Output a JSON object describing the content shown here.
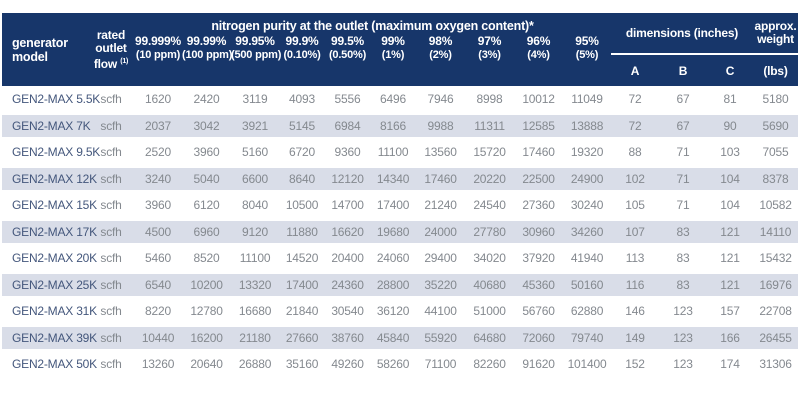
{
  "table": {
    "header": {
      "model_label": "generator model",
      "flow_label": "rated outlet flow",
      "flow_footnote": "(1)",
      "purity_title": "nitrogen purity at the outlet (maximum oxygen content)*",
      "purity_columns": [
        {
          "purity": "99.999%",
          "oxygen": "(10 ppm)"
        },
        {
          "purity": "99.99%",
          "oxygen": "(100 ppm)"
        },
        {
          "purity": "99.95%",
          "oxygen": "(500 ppm)"
        },
        {
          "purity": "99.9%",
          "oxygen": "(0.10%)"
        },
        {
          "purity": "99.5%",
          "oxygen": "(0.50%)"
        },
        {
          "purity": "99%",
          "oxygen": "(1%)"
        },
        {
          "purity": "98%",
          "oxygen": "(2%)"
        },
        {
          "purity": "97%",
          "oxygen": "(3%)"
        },
        {
          "purity": "96%",
          "oxygen": "(4%)"
        },
        {
          "purity": "95%",
          "oxygen": "(5%)"
        }
      ],
      "dimensions_label": "dimensions (inches)",
      "dimension_columns": [
        "A",
        "B",
        "C"
      ],
      "weight_label": "approx. weight",
      "weight_unit": "(lbs)"
    },
    "rows": [
      {
        "model": "GEN2-MAX 5.5K",
        "flow_unit": "scfh",
        "values": [
          1620,
          2420,
          3119,
          4093,
          5556,
          6496,
          7946,
          8998,
          10012,
          11049
        ],
        "dims": [
          72,
          67,
          81
        ],
        "weight": 5180
      },
      {
        "model": "GEN2-MAX 7K",
        "flow_unit": "scfh",
        "values": [
          2037,
          3042,
          3921,
          5145,
          6984,
          8166,
          9988,
          11311,
          12585,
          13888
        ],
        "dims": [
          72,
          67,
          90
        ],
        "weight": 5690
      },
      {
        "model": "GEN2-MAX 9.5K",
        "flow_unit": "scfh",
        "values": [
          2520,
          3960,
          5160,
          6720,
          9360,
          11100,
          13560,
          15720,
          17460,
          19320
        ],
        "dims": [
          88,
          71,
          103
        ],
        "weight": 7055
      },
      {
        "model": "GEN2-MAX 12K",
        "flow_unit": "scfh",
        "values": [
          3240,
          5040,
          6600,
          8640,
          12120,
          14340,
          17460,
          20220,
          22500,
          24900
        ],
        "dims": [
          102,
          71,
          104
        ],
        "weight": 8378
      },
      {
        "model": "GEN2-MAX 15K",
        "flow_unit": "scfh",
        "values": [
          3960,
          6120,
          8040,
          10500,
          14700,
          17400,
          21240,
          24540,
          27360,
          30240
        ],
        "dims": [
          105,
          71,
          104
        ],
        "weight": 10582
      },
      {
        "model": "GEN2-MAX 17K",
        "flow_unit": "scfh",
        "values": [
          4500,
          6960,
          9120,
          11880,
          16620,
          19680,
          24000,
          27780,
          30960,
          34260
        ],
        "dims": [
          107,
          83,
          121
        ],
        "weight": 14110
      },
      {
        "model": "GEN2-MAX 20K",
        "flow_unit": "scfh",
        "values": [
          5460,
          8520,
          11100,
          14520,
          20400,
          24060,
          29400,
          34020,
          37920,
          41940
        ],
        "dims": [
          113,
          83,
          121
        ],
        "weight": 15432
      },
      {
        "model": "GEN2-MAX 25K",
        "flow_unit": "scfh",
        "values": [
          6540,
          10200,
          13320,
          17400,
          24360,
          28800,
          35220,
          40680,
          45360,
          50160
        ],
        "dims": [
          116,
          83,
          121
        ],
        "weight": 16976
      },
      {
        "model": "GEN2-MAX 31K",
        "flow_unit": "scfh",
        "values": [
          8220,
          12780,
          16680,
          21840,
          30540,
          36120,
          44100,
          51000,
          56760,
          62880
        ],
        "dims": [
          146,
          123,
          157
        ],
        "weight": 22708
      },
      {
        "model": "GEN2-MAX 39K",
        "flow_unit": "scfh",
        "values": [
          10440,
          16200,
          21180,
          27660,
          38760,
          45840,
          55920,
          64680,
          72060,
          79740
        ],
        "dims": [
          149,
          123,
          166
        ],
        "weight": 26455
      },
      {
        "model": "GEN2-MAX 50K",
        "flow_unit": "scfh",
        "values": [
          13260,
          20640,
          26880,
          35160,
          49260,
          58260,
          71100,
          82260,
          91620,
          101400
        ],
        "dims": [
          152,
          123,
          174
        ],
        "weight": 31306
      }
    ]
  },
  "colors": {
    "header_bg": "#17366a",
    "row_alt": "#d9dde8",
    "model_text": "#44577c",
    "data_text": "#84898f"
  }
}
